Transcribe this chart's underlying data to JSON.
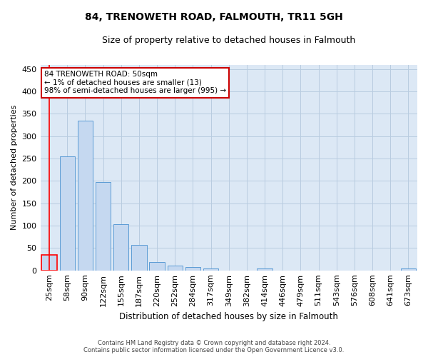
{
  "title": "84, TRENOWETH ROAD, FALMOUTH, TR11 5GH",
  "subtitle": "Size of property relative to detached houses in Falmouth",
  "xlabel": "Distribution of detached houses by size in Falmouth",
  "ylabel": "Number of detached properties",
  "bar_color": "#c5d8f0",
  "bar_edge_color": "#5b9bd5",
  "highlight_bar_edge_color": "#ff0000",
  "background_color": "#ffffff",
  "plot_bg_color": "#dce8f5",
  "grid_color": "#b8cce0",
  "categories": [
    "25sqm",
    "58sqm",
    "90sqm",
    "122sqm",
    "155sqm",
    "187sqm",
    "220sqm",
    "252sqm",
    "284sqm",
    "317sqm",
    "349sqm",
    "382sqm",
    "414sqm",
    "446sqm",
    "479sqm",
    "511sqm",
    "543sqm",
    "576sqm",
    "608sqm",
    "641sqm",
    "673sqm"
  ],
  "values": [
    35,
    255,
    335,
    197,
    103,
    57,
    18,
    10,
    8,
    5,
    0,
    0,
    4,
    0,
    0,
    0,
    0,
    0,
    0,
    0,
    4
  ],
  "highlight_index": 0,
  "annotation_line1": "84 TRENOWETH ROAD: 50sqm",
  "annotation_line2": "← 1% of detached houses are smaller (13)",
  "annotation_line3": "98% of semi-detached houses are larger (995) →",
  "annotation_box_color": "#ffffff",
  "annotation_box_edge_color": "#cc0000",
  "ylim_max": 460,
  "yticks": [
    0,
    50,
    100,
    150,
    200,
    250,
    300,
    350,
    400,
    450
  ],
  "footer_line1": "Contains HM Land Registry data © Crown copyright and database right 2024.",
  "footer_line2": "Contains public sector information licensed under the Open Government Licence v3.0."
}
